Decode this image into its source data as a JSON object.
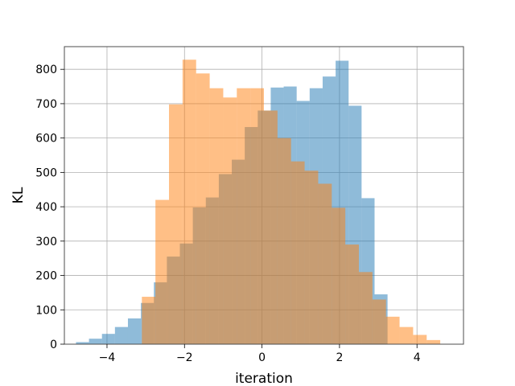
{
  "chart_data": {
    "type": "histogram",
    "title": "",
    "xlabel": "iteration",
    "ylabel": "KL",
    "xlim": [
      -5.1,
      5.2
    ],
    "ylim": [
      0,
      866
    ],
    "grid": true,
    "legend": "none",
    "xticks": [
      -4,
      -2,
      0,
      2,
      4
    ],
    "xtick_labels": [
      "−4",
      "−2",
      "0",
      "2",
      "4"
    ],
    "yticks": [
      0,
      100,
      200,
      300,
      400,
      500,
      600,
      700,
      800
    ],
    "ytick_labels": [
      "0",
      "100",
      "200",
      "300",
      "400",
      "500",
      "600",
      "700",
      "800"
    ],
    "series": [
      {
        "color": "#1f77b4",
        "alpha": 0.5,
        "bin_edges": [
          -4.8,
          -4.465,
          -4.13,
          -3.795,
          -3.46,
          -3.125,
          -2.79,
          -2.455,
          -2.12,
          -1.785,
          -1.45,
          -1.115,
          -0.78,
          -0.445,
          -0.11,
          0.225,
          0.56,
          0.895,
          1.23,
          1.565,
          1.9,
          2.235,
          2.57,
          2.905,
          3.24
        ],
        "counts": [
          6,
          16,
          30,
          50,
          75,
          120,
          180,
          255,
          293,
          398,
          427,
          495,
          537,
          632,
          680,
          747,
          750,
          708,
          745,
          779,
          825,
          694,
          425,
          145
        ]
      },
      {
        "color": "#ff7f0e",
        "alpha": 0.5,
        "bin_edges": [
          -3.1,
          -2.75,
          -2.4,
          -2.05,
          -1.7,
          -1.35,
          -1.0,
          -0.65,
          -0.3,
          0.05,
          0.4,
          0.75,
          1.1,
          1.45,
          1.8,
          2.15,
          2.5,
          2.85,
          3.2,
          3.55,
          3.9,
          4.25,
          4.6
        ],
        "counts": [
          138,
          420,
          698,
          828,
          788,
          745,
          718,
          745,
          745,
          680,
          600,
          532,
          505,
          467,
          397,
          290,
          210,
          130,
          80,
          50,
          27,
          12
        ]
      }
    ]
  }
}
